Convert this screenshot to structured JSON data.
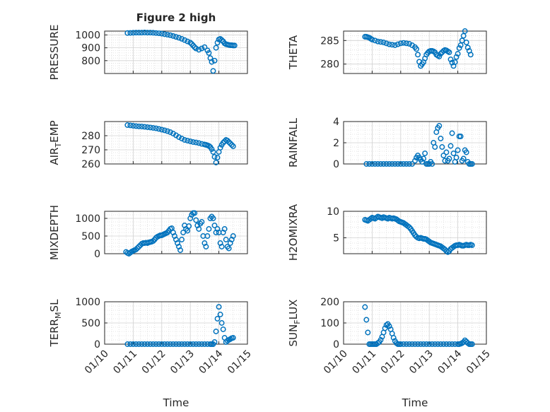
{
  "chart_data": [
    {
      "type": "scatter",
      "title": "Figure 2 high",
      "ylabel": "PRESSURE",
      "xlabel": "",
      "xlim": [
        0,
        5
      ],
      "ylim": [
        700,
        1030
      ],
      "yticks": [
        800,
        900,
        1000
      ],
      "xtick_labels": [],
      "color": "#0072BD",
      "x": [
        0.8,
        0.9,
        1.0,
        1.1,
        1.2,
        1.3,
        1.4,
        1.5,
        1.6,
        1.7,
        1.8,
        1.9,
        2.0,
        2.1,
        2.2,
        2.3,
        2.4,
        2.5,
        2.6,
        2.7,
        2.8,
        2.9,
        3.0,
        3.05,
        3.1,
        3.15,
        3.2,
        3.3,
        3.4,
        3.5,
        3.6,
        3.65,
        3.7,
        3.75,
        3.8,
        3.85,
        3.9,
        3.95,
        4.0,
        4.05,
        4.1,
        4.15,
        4.2,
        4.25,
        4.3,
        4.35,
        4.4,
        4.45,
        4.5,
        4.55
      ],
      "y": [
        1015,
        1016,
        1017,
        1018,
        1018,
        1018,
        1019,
        1018,
        1018,
        1017,
        1015,
        1013,
        1010,
        1006,
        1002,
        998,
        992,
        985,
        978,
        970,
        960,
        950,
        940,
        930,
        918,
        905,
        895,
        885,
        895,
        905,
        880,
        860,
        820,
        790,
        720,
        800,
        900,
        940,
        965,
        970,
        960,
        950,
        935,
        928,
        925,
        922,
        920,
        920,
        918,
        918
      ]
    },
    {
      "type": "scatter",
      "title": "",
      "ylabel": "THETA",
      "xlabel": "",
      "xlim": [
        0,
        5
      ],
      "ylim": [
        278,
        287
      ],
      "yticks": [
        280,
        285
      ],
      "xtick_labels": [],
      "color": "#0072BD",
      "x": [
        0.75,
        0.8,
        0.85,
        0.9,
        0.95,
        1.0,
        1.1,
        1.2,
        1.3,
        1.4,
        1.5,
        1.6,
        1.7,
        1.8,
        1.9,
        2.0,
        2.1,
        2.2,
        2.3,
        2.4,
        2.5,
        2.55,
        2.6,
        2.65,
        2.7,
        2.75,
        2.8,
        2.85,
        2.9,
        2.95,
        3.0,
        3.05,
        3.1,
        3.15,
        3.2,
        3.25,
        3.3,
        3.35,
        3.4,
        3.45,
        3.5,
        3.55,
        3.6,
        3.65,
        3.7,
        3.75,
        3.8,
        3.85,
        3.9,
        3.95,
        4.0,
        4.05,
        4.1,
        4.15,
        4.2,
        4.25,
        4.3,
        4.35,
        4.4,
        4.45
      ],
      "y": [
        285.8,
        285.8,
        285.7,
        285.6,
        285.4,
        285.2,
        285.0,
        284.8,
        284.7,
        284.6,
        284.4,
        284.2,
        284.1,
        284.0,
        284.2,
        284.4,
        284.5,
        284.4,
        284.3,
        284.0,
        283.6,
        283.2,
        282.0,
        280.5,
        279.6,
        280.0,
        280.4,
        281.2,
        282.0,
        282.4,
        282.7,
        282.8,
        282.8,
        282.7,
        282.5,
        282.0,
        281.8,
        281.6,
        282.2,
        282.5,
        282.8,
        283.0,
        282.9,
        282.7,
        282.5,
        281.0,
        280.3,
        279.6,
        280.4,
        281.5,
        282.2,
        283.4,
        284.0,
        285.0,
        286.0,
        287.0,
        284.6,
        283.5,
        282.8,
        282.0
      ]
    },
    {
      "type": "scatter",
      "title": "",
      "ylabel": "AIR_TEMP",
      "xlabel": "",
      "xlim": [
        0,
        5
      ],
      "ylim": [
        260,
        290
      ],
      "yticks": [
        260,
        270,
        280
      ],
      "xtick_labels": [],
      "color": "#0072BD",
      "x": [
        0.8,
        0.9,
        1.0,
        1.1,
        1.2,
        1.3,
        1.4,
        1.5,
        1.6,
        1.7,
        1.8,
        1.9,
        2.0,
        2.1,
        2.2,
        2.3,
        2.4,
        2.5,
        2.6,
        2.7,
        2.8,
        2.9,
        3.0,
        3.1,
        3.2,
        3.3,
        3.4,
        3.5,
        3.55,
        3.6,
        3.65,
        3.7,
        3.75,
        3.8,
        3.85,
        3.9,
        3.95,
        4.0,
        4.05,
        4.1,
        4.15,
        4.2,
        4.25,
        4.3,
        4.35,
        4.4,
        4.45,
        4.5
      ],
      "y": [
        287.5,
        287.3,
        287.0,
        286.8,
        286.6,
        286.5,
        286.3,
        286.0,
        285.8,
        285.5,
        285.2,
        284.8,
        284.3,
        283.8,
        283.2,
        282.5,
        281.5,
        280.3,
        279.0,
        278.0,
        277.0,
        276.5,
        276.0,
        275.5,
        275.2,
        274.8,
        274.2,
        273.8,
        273.5,
        273.2,
        272.8,
        272.0,
        270.5,
        268.5,
        265.0,
        261.0,
        264.5,
        268.5,
        271.5,
        273.5,
        275.0,
        276.0,
        277.0,
        276.5,
        275.5,
        274.5,
        273.5,
        272.5
      ]
    },
    {
      "type": "scatter",
      "title": "",
      "ylabel": "RAINFALL",
      "xlabel": "",
      "xlim": [
        0,
        5
      ],
      "ylim": [
        0,
        4
      ],
      "yticks": [
        0,
        2,
        4
      ],
      "xtick_labels": [],
      "color": "#0072BD",
      "x": [
        0.8,
        0.9,
        1.0,
        1.1,
        1.2,
        1.3,
        1.4,
        1.5,
        1.6,
        1.7,
        1.8,
        1.9,
        2.0,
        2.1,
        2.2,
        2.3,
        2.4,
        2.5,
        2.55,
        2.6,
        2.65,
        2.7,
        2.75,
        2.8,
        2.85,
        2.9,
        2.95,
        3.0,
        3.05,
        3.1,
        3.15,
        3.2,
        3.25,
        3.3,
        3.35,
        3.4,
        3.45,
        3.5,
        3.55,
        3.6,
        3.65,
        3.7,
        3.75,
        3.8,
        3.85,
        3.9,
        3.95,
        4.0,
        4.05,
        4.1,
        4.15,
        4.2,
        4.25,
        4.3,
        4.35,
        4.4,
        4.45,
        4.5
      ],
      "y": [
        0,
        0,
        0,
        0,
        0,
        0,
        0,
        0,
        0,
        0,
        0,
        0,
        0,
        0,
        0,
        0,
        0,
        0.3,
        0.6,
        0.8,
        0.6,
        0.4,
        0.2,
        0.5,
        1.0,
        0,
        0,
        0,
        0.2,
        0,
        2.0,
        1.6,
        3.0,
        3.4,
        3.6,
        2.4,
        1.6,
        0.8,
        0.3,
        1.1,
        0.3,
        0.5,
        1.7,
        2.9,
        1.0,
        0.2,
        0.6,
        1.3,
        2.6,
        2.6,
        0.3,
        0.5,
        1.3,
        1.1,
        0.2,
        0,
        0,
        0
      ]
    },
    {
      "type": "scatter",
      "title": "",
      "ylabel": "MIXDEPTH",
      "xlabel": "",
      "xlim": [
        0,
        5
      ],
      "ylim": [
        0,
        1200
      ],
      "yticks": [
        0,
        500,
        1000
      ],
      "xtick_labels": [],
      "color": "#0072BD",
      "x": [
        0.75,
        0.8,
        0.85,
        0.9,
        0.95,
        1.0,
        1.05,
        1.1,
        1.15,
        1.2,
        1.25,
        1.3,
        1.35,
        1.4,
        1.45,
        1.5,
        1.55,
        1.6,
        1.65,
        1.7,
        1.75,
        1.8,
        1.85,
        1.9,
        1.95,
        2.0,
        2.05,
        2.1,
        2.15,
        2.2,
        2.25,
        2.3,
        2.35,
        2.4,
        2.45,
        2.5,
        2.55,
        2.6,
        2.65,
        2.7,
        2.75,
        2.8,
        2.85,
        2.9,
        2.95,
        3.0,
        3.05,
        3.1,
        3.15,
        3.2,
        3.25,
        3.3,
        3.35,
        3.4,
        3.45,
        3.5,
        3.55,
        3.6,
        3.65,
        3.7,
        3.75,
        3.8,
        3.85,
        3.9,
        3.95,
        4.0,
        4.05,
        4.1,
        4.15,
        4.2,
        4.25,
        4.3,
        4.35,
        4.4,
        4.45,
        4.5
      ],
      "y": [
        50,
        20,
        0,
        30,
        60,
        80,
        100,
        120,
        160,
        200,
        240,
        280,
        300,
        300,
        310,
        300,
        320,
        330,
        340,
        360,
        400,
        450,
        480,
        500,
        520,
        520,
        540,
        560,
        580,
        600,
        650,
        700,
        720,
        600,
        500,
        400,
        300,
        200,
        100,
        400,
        600,
        800,
        700,
        650,
        780,
        1000,
        1100,
        1150,
        1150,
        950,
        800,
        700,
        850,
        900,
        500,
        300,
        200,
        500,
        700,
        1000,
        1050,
        1000,
        800,
        600,
        700,
        600,
        300,
        200,
        600,
        700,
        400,
        200,
        150,
        300,
        400,
        500
      ]
    },
    {
      "type": "scatter",
      "title": "",
      "ylabel": "H2OMIXRA",
      "xlabel": "",
      "xlim": [
        0,
        5
      ],
      "ylim": [
        2,
        10
      ],
      "yticks": [
        5,
        10
      ],
      "xtick_labels": [],
      "color": "#0072BD",
      "x": [
        0.75,
        0.8,
        0.85,
        0.9,
        0.95,
        1.0,
        1.05,
        1.1,
        1.15,
        1.2,
        1.25,
        1.3,
        1.35,
        1.4,
        1.45,
        1.5,
        1.55,
        1.6,
        1.65,
        1.7,
        1.75,
        1.8,
        1.85,
        1.9,
        1.95,
        2.0,
        2.05,
        2.1,
        2.15,
        2.2,
        2.25,
        2.3,
        2.35,
        2.4,
        2.45,
        2.5,
        2.55,
        2.6,
        2.65,
        2.7,
        2.75,
        2.8,
        2.85,
        2.9,
        2.95,
        3.0,
        3.05,
        3.1,
        3.15,
        3.2,
        3.25,
        3.3,
        3.35,
        3.4,
        3.45,
        3.5,
        3.55,
        3.6,
        3.65,
        3.7,
        3.75,
        3.8,
        3.85,
        3.9,
        3.95,
        4.0,
        4.05,
        4.1,
        4.15,
        4.2,
        4.25,
        4.3,
        4.35,
        4.4,
        4.45,
        4.5
      ],
      "y": [
        8.4,
        8.3,
        8.2,
        8.4,
        8.6,
        8.8,
        8.7,
        8.6,
        8.8,
        9.0,
        8.9,
        8.8,
        8.7,
        8.9,
        8.8,
        8.7,
        8.6,
        8.8,
        8.7,
        8.6,
        8.7,
        8.6,
        8.5,
        8.3,
        8.1,
        8.0,
        7.9,
        7.8,
        7.6,
        7.4,
        7.2,
        7.0,
        6.7,
        6.3,
        5.9,
        5.5,
        5.2,
        5.0,
        4.9,
        5.0,
        4.9,
        4.8,
        4.8,
        4.7,
        4.5,
        4.3,
        4.1,
        4.0,
        3.9,
        3.8,
        3.7,
        3.6,
        3.5,
        3.4,
        3.2,
        3.0,
        2.8,
        2.5,
        2.3,
        2.5,
        2.9,
        3.1,
        3.3,
        3.5,
        3.6,
        3.6,
        3.7,
        3.6,
        3.5,
        3.5,
        3.6,
        3.7,
        3.6,
        3.6,
        3.7,
        3.6
      ]
    },
    {
      "type": "scatter",
      "title": "",
      "ylabel": "TERR_MSL",
      "xlabel": "Time",
      "xlim": [
        0,
        5
      ],
      "ylim": [
        0,
        1000
      ],
      "yticks": [
        0,
        500,
        1000
      ],
      "xtick_labels": [
        "01/10",
        "01/11",
        "01/12",
        "01/13",
        "01/14",
        "01/15"
      ],
      "color": "#0072BD",
      "x": [
        0.8,
        0.9,
        1.0,
        1.1,
        1.2,
        1.3,
        1.4,
        1.5,
        1.6,
        1.7,
        1.8,
        1.9,
        2.0,
        2.1,
        2.2,
        2.3,
        2.4,
        2.5,
        2.6,
        2.7,
        2.8,
        2.9,
        3.0,
        3.1,
        3.2,
        3.3,
        3.4,
        3.5,
        3.6,
        3.7,
        3.75,
        3.8,
        3.85,
        3.9,
        3.95,
        4.0,
        4.05,
        4.1,
        4.15,
        4.2,
        4.25,
        4.3,
        4.35,
        4.4,
        4.45,
        4.5
      ],
      "y": [
        0,
        0,
        0,
        0,
        0,
        0,
        0,
        0,
        0,
        0,
        0,
        0,
        0,
        0,
        0,
        0,
        0,
        0,
        0,
        0,
        0,
        0,
        0,
        0,
        0,
        0,
        0,
        0,
        0,
        0,
        0,
        0,
        50,
        300,
        600,
        880,
        700,
        500,
        350,
        150,
        50,
        80,
        100,
        120,
        140,
        150
      ]
    },
    {
      "type": "scatter",
      "title": "",
      "ylabel": "SUN_FLUX",
      "xlabel": "Time",
      "xlim": [
        0,
        5
      ],
      "ylim": [
        0,
        200
      ],
      "yticks": [
        0,
        100,
        200
      ],
      "xtick_labels": [
        "01/10",
        "01/11",
        "01/12",
        "01/13",
        "01/14",
        "01/15"
      ],
      "color": "#0072BD",
      "x": [
        0.75,
        0.8,
        0.85,
        0.9,
        0.95,
        1.0,
        1.05,
        1.1,
        1.15,
        1.2,
        1.25,
        1.3,
        1.35,
        1.4,
        1.45,
        1.5,
        1.55,
        1.6,
        1.65,
        1.7,
        1.75,
        1.8,
        1.85,
        1.9,
        1.95,
        2.0,
        2.1,
        2.2,
        2.3,
        2.4,
        2.5,
        2.6,
        2.7,
        2.8,
        2.9,
        3.0,
        3.1,
        3.2,
        3.3,
        3.4,
        3.5,
        3.6,
        3.7,
        3.8,
        3.9,
        4.0,
        4.05,
        4.1,
        4.15,
        4.2,
        4.25,
        4.3,
        4.35,
        4.4,
        4.45,
        4.5
      ],
      "y": [
        175,
        115,
        55,
        0,
        0,
        0,
        0,
        0,
        0,
        5,
        10,
        20,
        35,
        55,
        75,
        90,
        95,
        85,
        70,
        50,
        30,
        15,
        5,
        0,
        0,
        0,
        0,
        0,
        0,
        0,
        0,
        0,
        0,
        0,
        0,
        0,
        0,
        0,
        0,
        0,
        0,
        0,
        0,
        0,
        0,
        0,
        0,
        2,
        5,
        10,
        18,
        12,
        5,
        0,
        0,
        0
      ]
    }
  ]
}
